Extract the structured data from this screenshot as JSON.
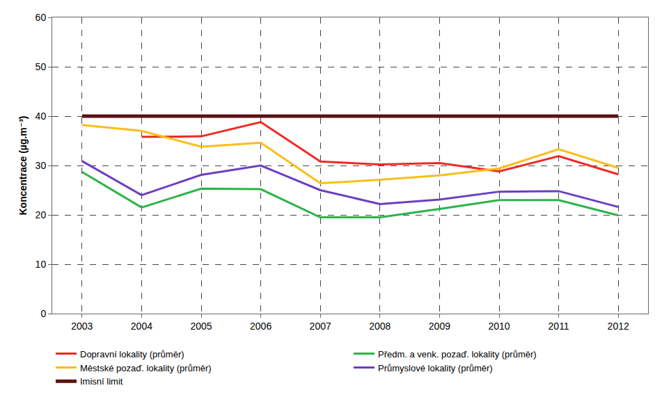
{
  "chart_data": {
    "type": "line",
    "y_label": "Koncentrace (µg.m⁻³)",
    "x": [
      2003,
      2004,
      2005,
      2006,
      2007,
      2008,
      2009,
      2010,
      2011,
      2012
    ],
    "xlim": [
      2002.5,
      2012.5
    ],
    "xticks": [
      2003,
      2004,
      2005,
      2006,
      2007,
      2008,
      2009,
      2010,
      2011,
      2012
    ],
    "ylim": [
      0,
      60
    ],
    "yticks": [
      0,
      10,
      20,
      30,
      40,
      50,
      60
    ],
    "grid": true,
    "legend": "bottom",
    "marker": "none",
    "series": [
      {
        "name": "Dopravní lokality (průměr)",
        "color": "#ee2a24",
        "values": [
          null,
          35.8,
          35.9,
          38.8,
          30.8,
          30.2,
          30.5,
          28.8,
          31.9,
          28.2
        ]
      },
      {
        "name": "Předm. a venk. pozaď. lokality (průměr)",
        "color": "#2db34a",
        "values": [
          28.7,
          21.5,
          25.3,
          25.2,
          19.5,
          19.5,
          21.2,
          23.0,
          23.0,
          19.9
        ]
      },
      {
        "name": "Městské pozaď. lokality (průměr)",
        "color": "#fbbd1a",
        "values": [
          38.2,
          37.0,
          33.8,
          34.6,
          26.4,
          27.1,
          28.0,
          29.4,
          33.3,
          29.5
        ]
      },
      {
        "name": "Průmyslové lokality (průměr)",
        "color": "#6a3fc2",
        "values": [
          30.9,
          24.0,
          28.1,
          30.0,
          25.0,
          22.2,
          23.1,
          24.7,
          24.8,
          21.6
        ]
      },
      {
        "name": "Imisní limit",
        "color": "#5a1212",
        "values": [
          40,
          40,
          40,
          40,
          40,
          40,
          40,
          40,
          40,
          40
        ]
      }
    ]
  }
}
